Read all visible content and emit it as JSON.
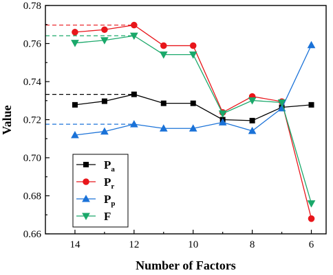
{
  "chart_data": {
    "type": "line",
    "xlabel": "Number of Factors",
    "ylabel": "Value",
    "x": [
      14,
      13,
      12,
      11,
      10,
      9,
      8,
      7,
      6
    ],
    "xlim": [
      15,
      5.5
    ],
    "xticks": [
      "14",
      "12",
      "10",
      "8",
      "6"
    ],
    "ylim": [
      0.66,
      0.78
    ],
    "yticks": [
      "0.66",
      "0.68",
      "0.70",
      "0.72",
      "0.74",
      "0.76",
      "0.78"
    ],
    "legend_position": "lower-left",
    "series": [
      {
        "name": "P",
        "sub": "a",
        "marker": "square",
        "color": "#000000",
        "values": [
          0.7278,
          0.7297,
          0.7333,
          0.7286,
          0.7286,
          0.72,
          0.7195,
          0.7265,
          0.7278
        ],
        "reference_line": 0.7333
      },
      {
        "name": "P",
        "sub": "r",
        "marker": "circle",
        "color": "#e8161b",
        "values": [
          0.766,
          0.7673,
          0.7697,
          0.7589,
          0.7589,
          0.7238,
          0.7322,
          0.7295,
          0.668
        ],
        "reference_line": 0.7697
      },
      {
        "name": "P",
        "sub": "p",
        "marker": "triangle-up",
        "color": "#1a72d8",
        "values": [
          0.7119,
          0.7138,
          0.7176,
          0.7154,
          0.7154,
          0.7186,
          0.7141,
          0.726,
          0.7592
        ],
        "reference_line": 0.7176
      },
      {
        "name": "F",
        "sub": "",
        "marker": "triangle-down",
        "color": "#1aa86a",
        "values": [
          0.7603,
          0.7617,
          0.7641,
          0.7542,
          0.7542,
          0.7232,
          0.7301,
          0.729,
          0.676
        ],
        "reference_line": 0.7641
      }
    ]
  }
}
